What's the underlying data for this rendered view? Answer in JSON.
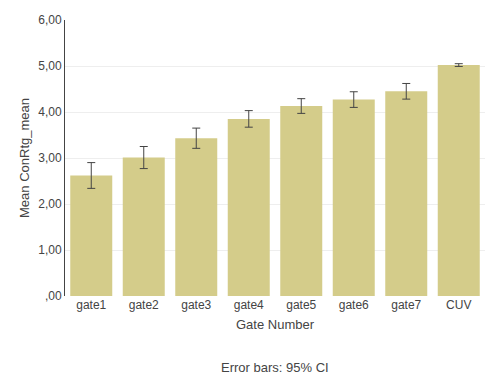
{
  "chart_data": {
    "type": "bar",
    "subtitle": "Error bars: 95% CI",
    "xlabel": "Gate Number",
    "ylabel": "Mean ConRtg_mean",
    "categories": [
      "gate1",
      "gate2",
      "gate3",
      "gate4",
      "gate5",
      "gate6",
      "gate7",
      "CUV"
    ],
    "values": [
      2.62,
      3.01,
      3.43,
      3.85,
      4.13,
      4.27,
      4.45,
      5.02
    ],
    "errors": [
      0.28,
      0.24,
      0.22,
      0.18,
      0.16,
      0.17,
      0.17,
      0.03
    ],
    "color": "#d4cc8a",
    "ylim": [
      0,
      6.0
    ],
    "yticks": [
      {
        "value": 0.0,
        "label": ",00"
      },
      {
        "value": 1.0,
        "label": "1,00"
      },
      {
        "value": 2.0,
        "label": "2,00"
      },
      {
        "value": 3.0,
        "label": "3,00"
      },
      {
        "value": 4.0,
        "label": "4,00"
      },
      {
        "value": 5.0,
        "label": "5,00"
      },
      {
        "value": 6.0,
        "label": "6,00"
      }
    ],
    "grid": true
  }
}
